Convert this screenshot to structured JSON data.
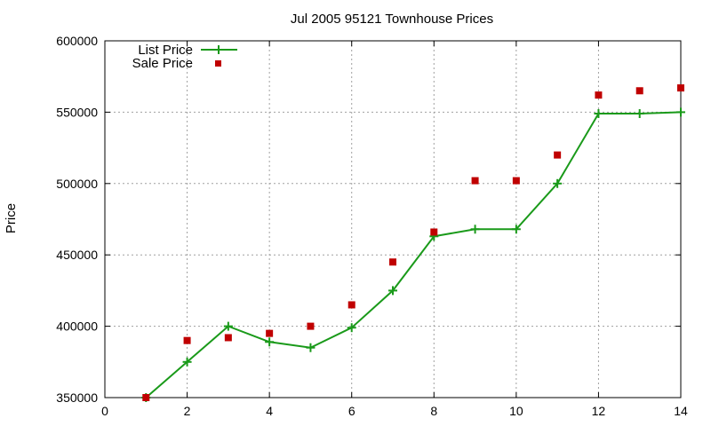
{
  "chart_data": {
    "type": "line",
    "title": "Jul 2005 95121 Townhouse Prices",
    "xlabel": "",
    "ylabel": "Price",
    "xlim": [
      0,
      14
    ],
    "ylim": [
      350000,
      600000
    ],
    "xticks": [
      0,
      2,
      4,
      6,
      8,
      10,
      12,
      14
    ],
    "yticks": [
      350000,
      400000,
      450000,
      500000,
      550000,
      600000
    ],
    "xtick_labels": [
      "0",
      "2",
      "4",
      "6",
      "8",
      "10",
      "12",
      "14"
    ],
    "ytick_labels": [
      "350000",
      "400000",
      "450000",
      "500000",
      "550000",
      "600000"
    ],
    "grid": true,
    "legend_position": "top-left",
    "series": [
      {
        "name": "List Price",
        "style": "linespoints",
        "marker": "plus",
        "color": "#1a9a1a",
        "x": [
          1,
          2,
          3,
          4,
          5,
          6,
          7,
          8,
          9,
          10,
          11,
          12,
          13,
          14
        ],
        "y": [
          350000,
          375000,
          400000,
          389000,
          385000,
          399000,
          425000,
          463000,
          468000,
          468000,
          500000,
          549000,
          549000,
          550000
        ]
      },
      {
        "name": "Sale Price",
        "style": "points",
        "marker": "square",
        "color": "#c00000",
        "x": [
          1,
          2,
          3,
          4,
          5,
          6,
          7,
          8,
          9,
          10,
          11,
          12,
          13,
          14
        ],
        "y": [
          350000,
          390000,
          392000,
          395000,
          400000,
          415000,
          445000,
          466000,
          502000,
          502000,
          520000,
          562000,
          565000,
          567000
        ]
      }
    ]
  }
}
